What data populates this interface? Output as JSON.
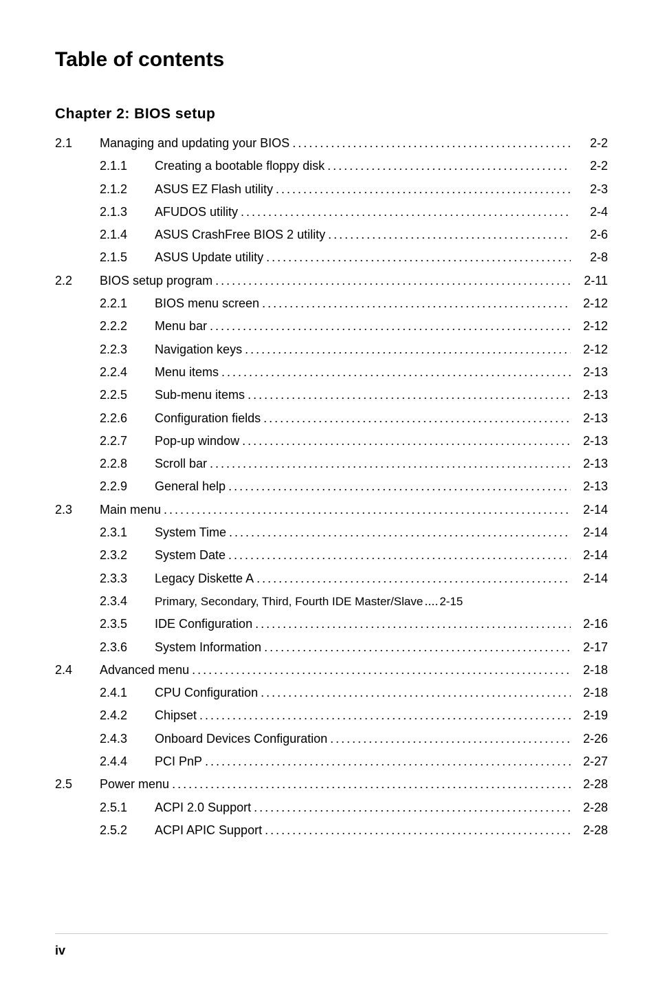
{
  "title": "Table of contents",
  "chapter_heading": "Chapter 2: BIOS setup",
  "page_number": "iv",
  "colors": {
    "text": "#000000",
    "background": "#ffffff",
    "divider": "#cccccc"
  },
  "typography": {
    "title_fontsize": 30,
    "chapter_fontsize": 21,
    "body_fontsize": 18,
    "pagenum_fontsize": 18
  },
  "sections": [
    {
      "num": "2.1",
      "title": "Managing and updating your BIOS",
      "page": "2-2",
      "subs": [
        {
          "num": "2.1.1",
          "title": "Creating a bootable floppy disk",
          "page": "2-2"
        },
        {
          "num": "2.1.2",
          "title": "ASUS EZ Flash utility",
          "page": "2-3"
        },
        {
          "num": "2.1.3",
          "title": "AFUDOS utility",
          "page": "2-4"
        },
        {
          "num": "2.1.4",
          "title": "ASUS CrashFree BIOS 2 utility",
          "page": "2-6"
        },
        {
          "num": "2.1.5",
          "title": "ASUS Update utility",
          "page": "2-8"
        }
      ]
    },
    {
      "num": "2.2",
      "title": "BIOS setup program",
      "page": "2-11",
      "subs": [
        {
          "num": "2.2.1",
          "title": "BIOS menu screen",
          "page": "2-12"
        },
        {
          "num": "2.2.2",
          "title": "Menu bar",
          "page": "2-12"
        },
        {
          "num": "2.2.3",
          "title": "Navigation keys",
          "page": "2-12"
        },
        {
          "num": "2.2.4",
          "title": "Menu items",
          "page": "2-13"
        },
        {
          "num": "2.2.5",
          "title": "Sub-menu items",
          "page": "2-13"
        },
        {
          "num": "2.2.6",
          "title": "Configuration fields",
          "page": "2-13"
        },
        {
          "num": "2.2.7",
          "title": "Pop-up window",
          "page": "2-13"
        },
        {
          "num": "2.2.8",
          "title": "Scroll bar",
          "page": "2-13"
        },
        {
          "num": "2.2.9",
          "title": "General help",
          "page": "2-13"
        }
      ]
    },
    {
      "num": "2.3",
      "title": "Main menu",
      "page": "2-14",
      "subs": [
        {
          "num": "2.3.1",
          "title": "System Time",
          "page": "2-14"
        },
        {
          "num": "2.3.2",
          "title": "System Date",
          "page": "2-14"
        },
        {
          "num": "2.3.3",
          "title": "Legacy Diskette A ",
          "page": "2-14"
        },
        {
          "num": "2.3.4",
          "title": "Primary, Secondary, Third, Fourth IDE Master/Slave",
          "page": "2-15",
          "noleader": true
        },
        {
          "num": "2.3.5",
          "title": "IDE Configuration",
          "page": "2-16"
        },
        {
          "num": "2.3.6",
          "title": "System Information",
          "page": "2-17"
        }
      ]
    },
    {
      "num": "2.4",
      "title": "Advanced menu",
      "page": "2-18",
      "subs": [
        {
          "num": "2.4.1",
          "title": "CPU Configuration",
          "page": "2-18"
        },
        {
          "num": "2.4.2",
          "title": "Chipset",
          "page": "2-19"
        },
        {
          "num": "2.4.3",
          "title": "Onboard Devices Configuration",
          "page": "2-26"
        },
        {
          "num": "2.4.4",
          "title": "PCI PnP",
          "page": "2-27"
        }
      ]
    },
    {
      "num": "2.5",
      "title": "Power menu",
      "page": "2-28",
      "subs": [
        {
          "num": "2.5.1",
          "title": "ACPI 2.0 Support ",
          "page": "2-28"
        },
        {
          "num": "2.5.2",
          "title": "ACPI APIC Support",
          "page": "2-28"
        }
      ]
    }
  ]
}
